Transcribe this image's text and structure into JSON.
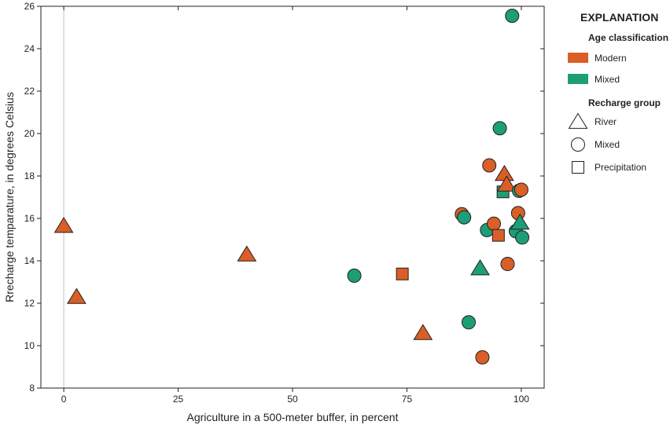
{
  "colors": {
    "modern": "#d95f26",
    "mixed": "#1c9e77",
    "stroke": "#231f20",
    "axis": "#231f20",
    "zero_line": "#cccccc"
  },
  "chart_data": {
    "type": "scatter",
    "xlabel": "Agriculture in a 500-meter buffer, in percent",
    "ylabel": "Rrecharge temparature, in degrees Celsius",
    "xlim": [
      -5,
      105
    ],
    "ylim": [
      8,
      26
    ],
    "xticks": [
      0,
      25,
      50,
      75,
      100
    ],
    "yticks": [
      8,
      10,
      12,
      14,
      16,
      18,
      20,
      22,
      24,
      26
    ],
    "grid": false,
    "legend_placement": "right",
    "points": [
      {
        "x": 0,
        "y": 15.65,
        "age": "modern",
        "group": "river"
      },
      {
        "x": 2.8,
        "y": 12.3,
        "age": "modern",
        "group": "river"
      },
      {
        "x": 40,
        "y": 14.3,
        "age": "modern",
        "group": "river"
      },
      {
        "x": 63.5,
        "y": 13.3,
        "age": "mixed",
        "group": "mixed"
      },
      {
        "x": 74,
        "y": 13.38,
        "age": "modern",
        "group": "precipitation"
      },
      {
        "x": 78.5,
        "y": 10.6,
        "age": "modern",
        "group": "river"
      },
      {
        "x": 87,
        "y": 16.2,
        "age": "modern",
        "group": "mixed"
      },
      {
        "x": 87.5,
        "y": 16.05,
        "age": "mixed",
        "group": "mixed"
      },
      {
        "x": 88.5,
        "y": 11.1,
        "age": "mixed",
        "group": "mixed"
      },
      {
        "x": 91,
        "y": 13.65,
        "age": "mixed",
        "group": "river"
      },
      {
        "x": 91.5,
        "y": 9.45,
        "age": "modern",
        "group": "mixed"
      },
      {
        "x": 92.5,
        "y": 15.45,
        "age": "mixed",
        "group": "mixed"
      },
      {
        "x": 93,
        "y": 18.5,
        "age": "modern",
        "group": "mixed"
      },
      {
        "x": 94,
        "y": 15.75,
        "age": "modern",
        "group": "mixed"
      },
      {
        "x": 95,
        "y": 15.2,
        "age": "modern",
        "group": "precipitation"
      },
      {
        "x": 95.3,
        "y": 20.25,
        "age": "mixed",
        "group": "mixed"
      },
      {
        "x": 96,
        "y": 17.25,
        "age": "mixed",
        "group": "precipitation"
      },
      {
        "x": 96.3,
        "y": 18.1,
        "age": "modern",
        "group": "river"
      },
      {
        "x": 96.8,
        "y": 17.6,
        "age": "modern",
        "group": "river"
      },
      {
        "x": 97,
        "y": 13.85,
        "age": "modern",
        "group": "mixed"
      },
      {
        "x": 98,
        "y": 25.55,
        "age": "mixed",
        "group": "mixed"
      },
      {
        "x": 98.8,
        "y": 15.4,
        "age": "mixed",
        "group": "mixed"
      },
      {
        "x": 99.3,
        "y": 16.25,
        "age": "modern",
        "group": "mixed"
      },
      {
        "x": 99.5,
        "y": 17.3,
        "age": "mixed",
        "group": "mixed"
      },
      {
        "x": 99.7,
        "y": 15.8,
        "age": "mixed",
        "group": "river"
      },
      {
        "x": 100,
        "y": 17.35,
        "age": "modern",
        "group": "mixed"
      },
      {
        "x": 100.2,
        "y": 15.1,
        "age": "mixed",
        "group": "mixed"
      }
    ]
  },
  "legend": {
    "title": "EXPLANATION",
    "age_heading": "Age classification",
    "age_items": [
      {
        "key": "modern",
        "label": "Modern"
      },
      {
        "key": "mixed",
        "label": "Mixed"
      }
    ],
    "group_heading": "Recharge group",
    "group_items": [
      {
        "key": "river",
        "label": "River",
        "shape": "triangle"
      },
      {
        "key": "mixed",
        "label": "Mixed",
        "shape": "circle"
      },
      {
        "key": "precipitation",
        "label": "Precipitation",
        "shape": "square"
      }
    ]
  }
}
